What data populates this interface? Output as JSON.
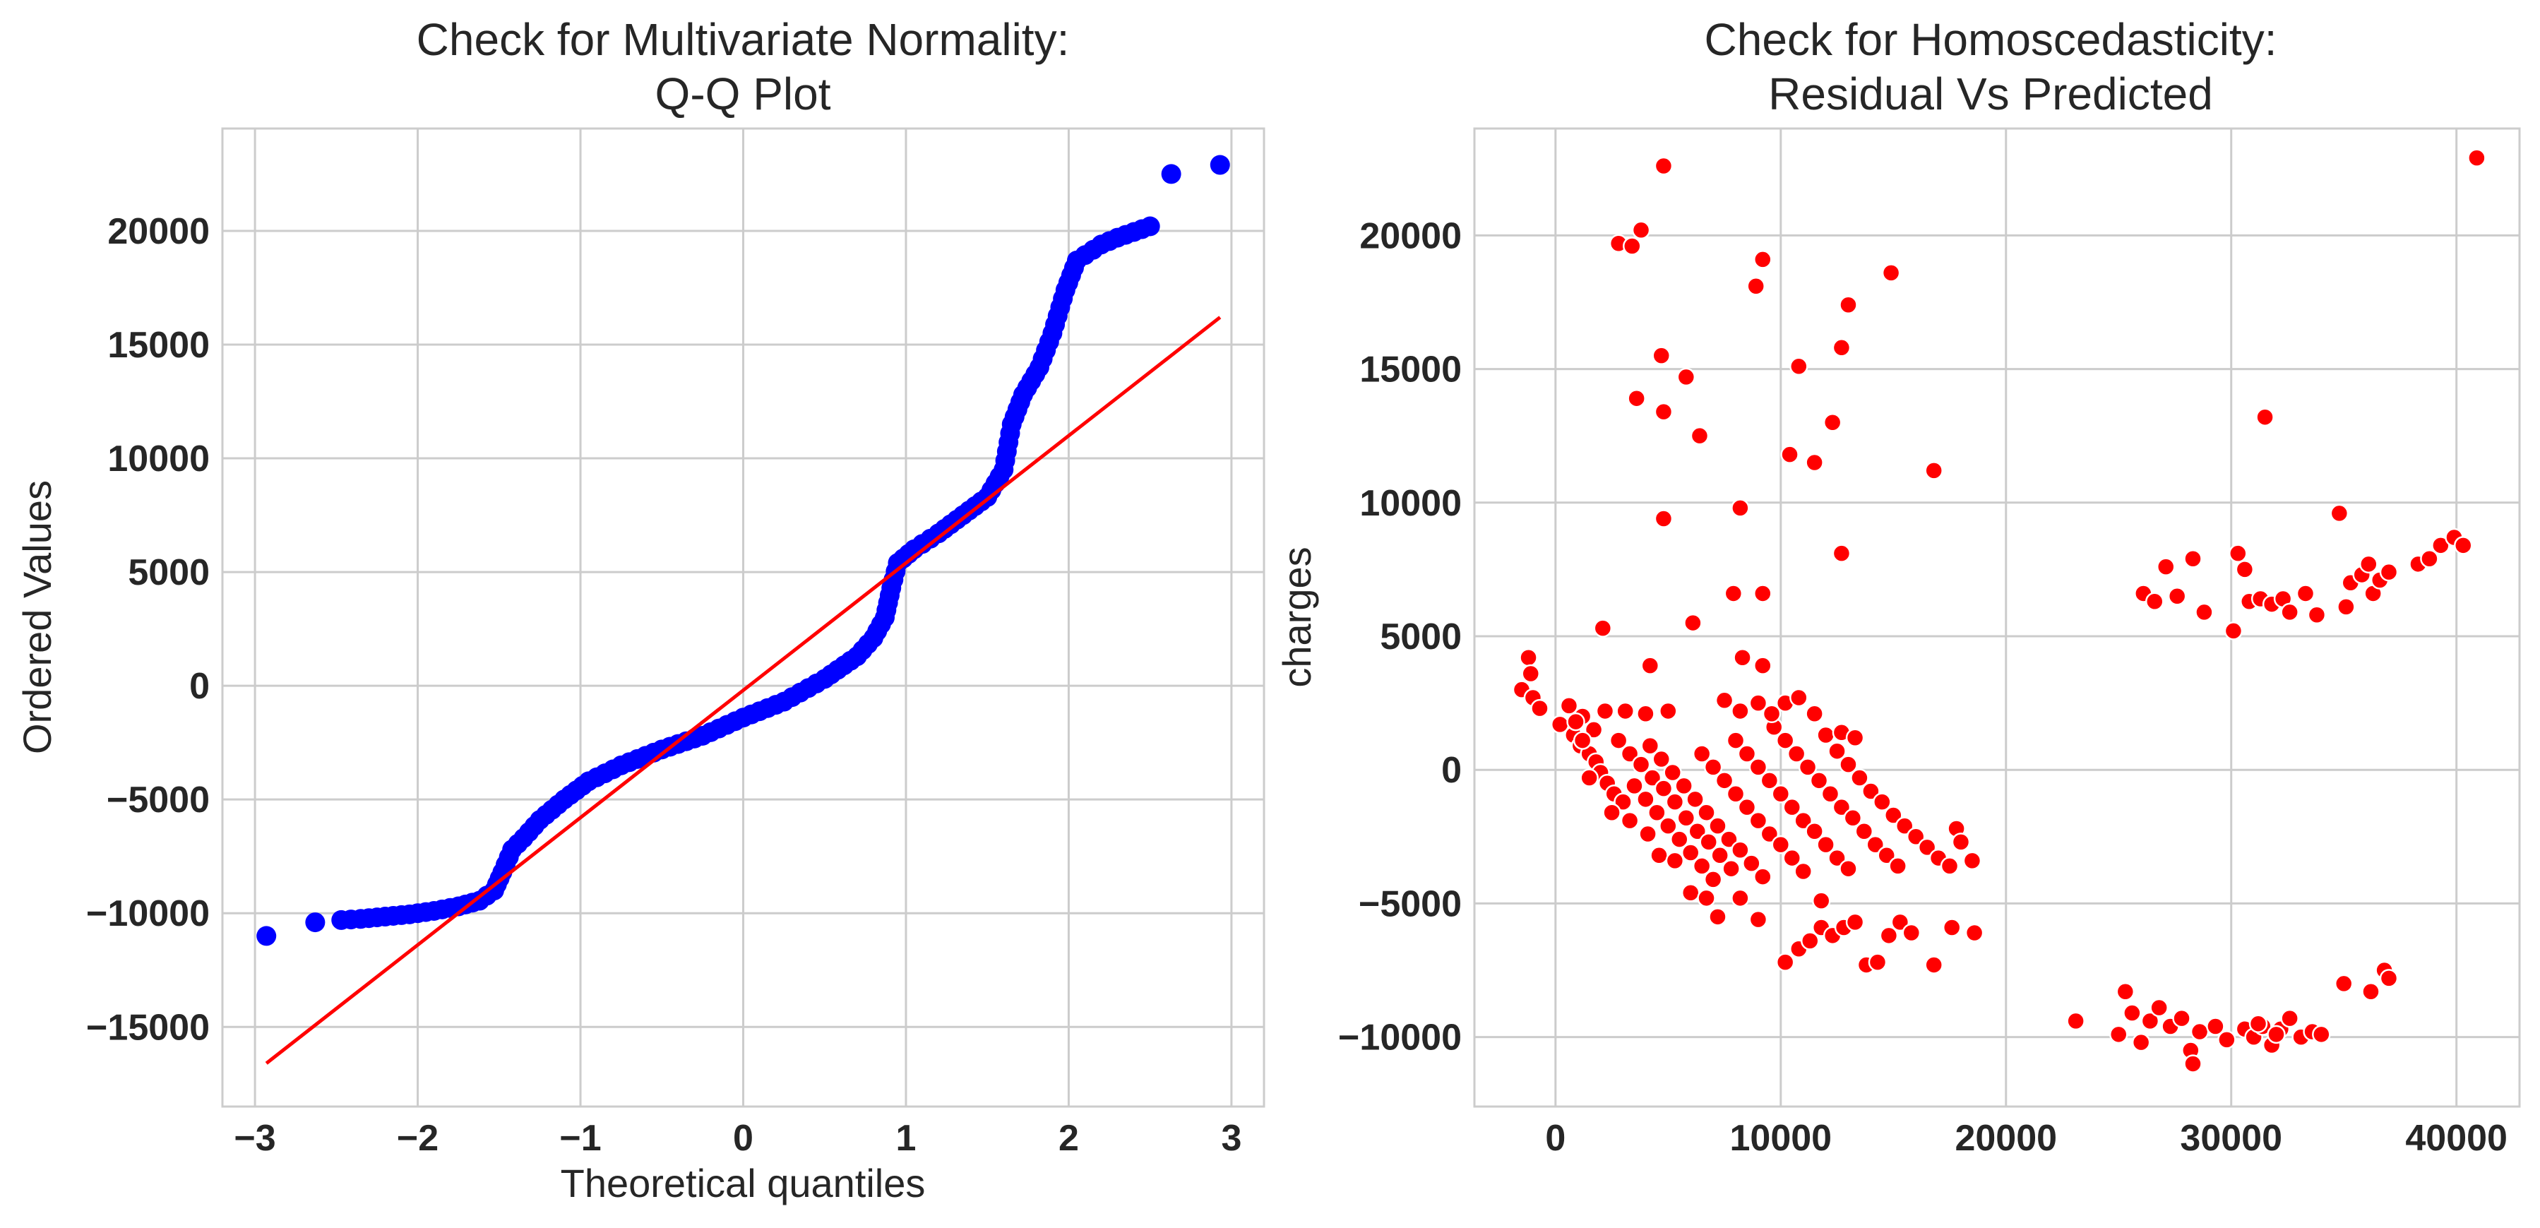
{
  "chart_data": [
    {
      "type": "scatter",
      "title": [
        "Check for Multivariate Normality:",
        "Q-Q Plot"
      ],
      "xlabel": "Theoretical quantiles",
      "ylabel": "Ordered Values",
      "xlim": [
        -3.2,
        3.2
      ],
      "ylim": [
        -18500,
        24500
      ],
      "xticks": [
        -3,
        -2,
        -1,
        0,
        1,
        2,
        3
      ],
      "xtick_labels": [
        "−3",
        "−2",
        "−1",
        "0",
        "1",
        "2",
        "3"
      ],
      "yticks": [
        -15000,
        -10000,
        -5000,
        0,
        5000,
        10000,
        15000,
        20000
      ],
      "ytick_labels": [
        "−15000",
        "−10000",
        "−5000",
        "0",
        "5000",
        "10000",
        "15000",
        "20000"
      ],
      "grid": true,
      "marker_color": "#0000ff",
      "line_color": "#ff0000",
      "fit_line": {
        "x": [
          -2.93,
          2.93
        ],
        "y": [
          -16600,
          16200
        ]
      },
      "curve_points": [
        [
          -2.93,
          -11000
        ],
        [
          -2.63,
          -10400
        ],
        [
          -2.47,
          -10300
        ],
        [
          -2.35,
          -10250
        ],
        [
          -2.2,
          -10150
        ],
        [
          -2.05,
          -10050
        ],
        [
          -1.9,
          -9900
        ],
        [
          -1.75,
          -9700
        ],
        [
          -1.62,
          -9450
        ],
        [
          -1.53,
          -9000
        ],
        [
          -1.48,
          -8200
        ],
        [
          -1.42,
          -7200
        ],
        [
          -1.35,
          -6700
        ],
        [
          -1.25,
          -5900
        ],
        [
          -1.1,
          -5000
        ],
        [
          -0.95,
          -4200
        ],
        [
          -0.75,
          -3500
        ],
        [
          -0.5,
          -2800
        ],
        [
          -0.25,
          -2200
        ],
        [
          0.0,
          -1400
        ],
        [
          0.25,
          -700
        ],
        [
          0.5,
          300
        ],
        [
          0.7,
          1300
        ],
        [
          0.8,
          2100
        ],
        [
          0.87,
          3000
        ],
        [
          0.91,
          4300
        ],
        [
          0.95,
          5400
        ],
        [
          1.05,
          6000
        ],
        [
          1.2,
          6700
        ],
        [
          1.35,
          7500
        ],
        [
          1.5,
          8300
        ],
        [
          1.6,
          9500
        ],
        [
          1.65,
          11500
        ],
        [
          1.72,
          12800
        ],
        [
          1.82,
          14000
        ],
        [
          1.9,
          15500
        ],
        [
          1.98,
          17400
        ],
        [
          2.05,
          18700
        ],
        [
          2.2,
          19400
        ],
        [
          2.3,
          19700
        ],
        [
          2.5,
          20200
        ],
        [
          2.63,
          22500
        ],
        [
          2.93,
          22900
        ]
      ]
    },
    {
      "type": "scatter",
      "title": [
        "Check for Homoscedasticity:",
        "Residual Vs Predicted"
      ],
      "xlabel": "",
      "ylabel": "charges",
      "xlim": [
        -3600,
        42800
      ],
      "ylim": [
        -12600,
        24000
      ],
      "xticks": [
        0,
        10000,
        20000,
        30000,
        40000
      ],
      "xtick_labels": [
        "0",
        "10000",
        "20000",
        "30000",
        "40000"
      ],
      "yticks": [
        -10000,
        -5000,
        0,
        5000,
        10000,
        15000,
        20000
      ],
      "ytick_labels": [
        "−10000",
        "−5000",
        "0",
        "5000",
        "10000",
        "15000",
        "20000"
      ],
      "grid": true,
      "marker_color": "#ff0000",
      "points": [
        [
          -1500,
          3000
        ],
        [
          -1200,
          4200
        ],
        [
          -1000,
          2700
        ],
        [
          -700,
          2300
        ],
        [
          -1100,
          3600
        ],
        [
          200,
          1700
        ],
        [
          600,
          2400
        ],
        [
          800,
          1300
        ],
        [
          1100,
          900
        ],
        [
          1500,
          600
        ],
        [
          1800,
          300
        ],
        [
          2000,
          -100
        ],
        [
          2300,
          -500
        ],
        [
          2600,
          -900
        ],
        [
          3000,
          -1200
        ],
        [
          1200,
          2000
        ],
        [
          900,
          1800
        ],
        [
          1700,
          1500
        ],
        [
          2200,
          2200
        ],
        [
          2800,
          1100
        ],
        [
          3300,
          600
        ],
        [
          3800,
          200
        ],
        [
          4300,
          -300
        ],
        [
          4800,
          -700
        ],
        [
          5300,
          -1200
        ],
        [
          5800,
          -1800
        ],
        [
          6300,
          -2300
        ],
        [
          6800,
          -2700
        ],
        [
          7300,
          -3200
        ],
        [
          7800,
          -3700
        ],
        [
          3500,
          -600
        ],
        [
          4000,
          -1100
        ],
        [
          4500,
          -1600
        ],
        [
          5000,
          -2100
        ],
        [
          5500,
          -2600
        ],
        [
          6000,
          -3100
        ],
        [
          6500,
          -3600
        ],
        [
          7000,
          -4100
        ],
        [
          4200,
          900
        ],
        [
          4700,
          400
        ],
        [
          5200,
          -100
        ],
        [
          5700,
          -600
        ],
        [
          6200,
          -1100
        ],
        [
          6700,
          -1600
        ],
        [
          7200,
          -2100
        ],
        [
          7700,
          -2600
        ],
        [
          8200,
          -3000
        ],
        [
          8700,
          -3500
        ],
        [
          9200,
          -4000
        ],
        [
          6500,
          600
        ],
        [
          7000,
          100
        ],
        [
          7500,
          -400
        ],
        [
          8000,
          -900
        ],
        [
          8500,
          -1400
        ],
        [
          9000,
          -1900
        ],
        [
          9500,
          -2400
        ],
        [
          10000,
          -2800
        ],
        [
          10500,
          -3300
        ],
        [
          11000,
          -3800
        ],
        [
          8000,
          1100
        ],
        [
          8500,
          600
        ],
        [
          9000,
          100
        ],
        [
          9500,
          -400
        ],
        [
          10000,
          -900
        ],
        [
          10500,
          -1400
        ],
        [
          11000,
          -1900
        ],
        [
          11500,
          -2300
        ],
        [
          12000,
          -2800
        ],
        [
          12500,
          -3300
        ],
        [
          13000,
          -3700
        ],
        [
          9700,
          1600
        ],
        [
          10200,
          1100
        ],
        [
          10700,
          600
        ],
        [
          11200,
          100
        ],
        [
          11700,
          -400
        ],
        [
          12200,
          -900
        ],
        [
          12700,
          -1400
        ],
        [
          13200,
          -1800
        ],
        [
          13700,
          -2300
        ],
        [
          14200,
          -2800
        ],
        [
          14700,
          -3200
        ],
        [
          15200,
          -3600
        ],
        [
          11500,
          2100
        ],
        [
          12000,
          1300
        ],
        [
          12500,
          700
        ],
        [
          13000,
          200
        ],
        [
          13500,
          -300
        ],
        [
          14000,
          -800
        ],
        [
          14500,
          -1200
        ],
        [
          15000,
          -1700
        ],
        [
          15500,
          -2100
        ],
        [
          16000,
          -2500
        ],
        [
          16500,
          -2900
        ],
        [
          17000,
          -3300
        ],
        [
          17500,
          -3600
        ],
        [
          17800,
          -2200
        ],
        [
          18000,
          -2700
        ],
        [
          18500,
          -3400
        ],
        [
          7500,
          2600
        ],
        [
          8200,
          2200
        ],
        [
          9000,
          2500
        ],
        [
          9600,
          2100
        ],
        [
          10200,
          2500
        ],
        [
          10800,
          2700
        ],
        [
          12700,
          1400
        ],
        [
          13300,
          1200
        ],
        [
          3100,
          2200
        ],
        [
          4000,
          2100
        ],
        [
          5000,
          2200
        ],
        [
          2100,
          5300
        ],
        [
          4200,
          3900
        ],
        [
          6100,
          5500
        ],
        [
          7900,
          6600
        ],
        [
          8300,
          4200
        ],
        [
          9200,
          3900
        ],
        [
          9200,
          6600
        ],
        [
          4800,
          9400
        ],
        [
          8200,
          9800
        ],
        [
          12700,
          8100
        ],
        [
          3600,
          13900
        ],
        [
          4800,
          13400
        ],
        [
          6400,
          12500
        ],
        [
          5800,
          14700
        ],
        [
          4700,
          15500
        ],
        [
          2800,
          19700
        ],
        [
          3400,
          19600
        ],
        [
          3800,
          20200
        ],
        [
          4800,
          22600
        ],
        [
          8900,
          18100
        ],
        [
          9200,
          19100
        ],
        [
          10400,
          11800
        ],
        [
          11500,
          11500
        ],
        [
          10800,
          15100
        ],
        [
          12300,
          13000
        ],
        [
          12700,
          15800
        ],
        [
          13000,
          17400
        ],
        [
          14900,
          18600
        ],
        [
          16800,
          11200
        ],
        [
          7200,
          -5500
        ],
        [
          9000,
          -5600
        ],
        [
          10200,
          -7200
        ],
        [
          10800,
          -6700
        ],
        [
          11300,
          -6400
        ],
        [
          11800,
          -5900
        ],
        [
          12300,
          -6200
        ],
        [
          12800,
          -5900
        ],
        [
          13300,
          -5700
        ],
        [
          13800,
          -7300
        ],
        [
          14300,
          -7200
        ],
        [
          14800,
          -6200
        ],
        [
          15300,
          -5700
        ],
        [
          15800,
          -6100
        ],
        [
          16800,
          -7300
        ],
        [
          17600,
          -5900
        ],
        [
          18600,
          -6100
        ],
        [
          6000,
          -4600
        ],
        [
          6700,
          -4800
        ],
        [
          8200,
          -4800
        ],
        [
          11800,
          -4900
        ],
        [
          1200,
          1100
        ],
        [
          1500,
          -300
        ],
        [
          2500,
          -1600
        ],
        [
          3300,
          -1900
        ],
        [
          4100,
          -2400
        ],
        [
          4600,
          -3200
        ],
        [
          5300,
          -3400
        ],
        [
          26100,
          6600
        ],
        [
          26600,
          6300
        ],
        [
          27100,
          7600
        ],
        [
          27600,
          6500
        ],
        [
          28300,
          7900
        ],
        [
          28800,
          5900
        ],
        [
          30100,
          5200
        ],
        [
          30300,
          8100
        ],
        [
          30600,
          7500
        ],
        [
          30800,
          6300
        ],
        [
          31300,
          6400
        ],
        [
          31800,
          6200
        ],
        [
          32300,
          6400
        ],
        [
          32600,
          5900
        ],
        [
          33300,
          6600
        ],
        [
          33800,
          5800
        ],
        [
          34800,
          9600
        ],
        [
          35100,
          6100
        ],
        [
          35300,
          7000
        ],
        [
          35800,
          7300
        ],
        [
          36100,
          7700
        ],
        [
          36300,
          6600
        ],
        [
          36600,
          7100
        ],
        [
          37000,
          7400
        ],
        [
          38300,
          7700
        ],
        [
          38800,
          7900
        ],
        [
          39300,
          8400
        ],
        [
          39900,
          8700
        ],
        [
          40300,
          8400
        ],
        [
          31500,
          13200
        ],
        [
          40900,
          22900
        ],
        [
          23100,
          -9400
        ],
        [
          25000,
          -9900
        ],
        [
          25300,
          -8300
        ],
        [
          25600,
          -9100
        ],
        [
          26000,
          -10200
        ],
        [
          26400,
          -9400
        ],
        [
          26800,
          -8900
        ],
        [
          27300,
          -9600
        ],
        [
          27800,
          -9300
        ],
        [
          28200,
          -10500
        ],
        [
          28300,
          -11000
        ],
        [
          28600,
          -9800
        ],
        [
          29300,
          -9600
        ],
        [
          29800,
          -10100
        ],
        [
          30600,
          -9700
        ],
        [
          31000,
          -10000
        ],
        [
          31400,
          -9600
        ],
        [
          31800,
          -10300
        ],
        [
          32200,
          -9700
        ],
        [
          32600,
          -9300
        ],
        [
          33100,
          -10000
        ],
        [
          33600,
          -9800
        ],
        [
          34000,
          -9900
        ],
        [
          35000,
          -8000
        ],
        [
          36200,
          -8300
        ],
        [
          36800,
          -7500
        ],
        [
          37000,
          -7800
        ],
        [
          31200,
          -9500
        ],
        [
          32000,
          -9900
        ]
      ]
    }
  ]
}
